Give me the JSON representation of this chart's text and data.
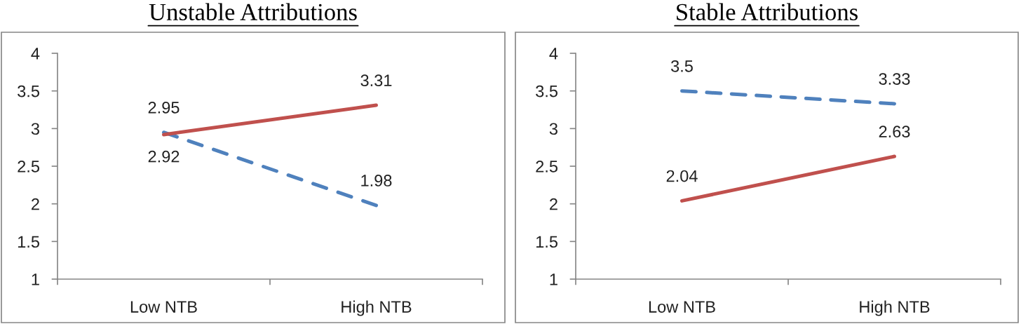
{
  "chart_data": [
    {
      "type": "line",
      "title": "Unstable Attributions",
      "categories": [
        "Low NTB",
        "High NTB"
      ],
      "series": [
        {
          "color": "#4f81bd",
          "line_style": "dashed",
          "values": [
            2.95,
            1.98
          ]
        },
        {
          "color": "#c0504d",
          "line_style": "solid",
          "values": [
            2.92,
            3.31
          ]
        }
      ],
      "ylim": [
        1,
        4
      ],
      "yticks": [
        1,
        1.5,
        2,
        2.5,
        3,
        3.5,
        4
      ],
      "data_labels": true
    },
    {
      "type": "line",
      "title": "Stable Attributions",
      "categories": [
        "Low NTB",
        "High NTB"
      ],
      "series": [
        {
          "color": "#4f81bd",
          "line_style": "dashed",
          "values": [
            3.5,
            3.33
          ]
        },
        {
          "color": "#c0504d",
          "line_style": "solid",
          "values": [
            2.04,
            2.63
          ]
        }
      ],
      "ylim": [
        1,
        4
      ],
      "yticks": [
        1,
        1.5,
        2,
        2.5,
        3,
        3.5,
        4
      ],
      "data_labels": true
    }
  ]
}
